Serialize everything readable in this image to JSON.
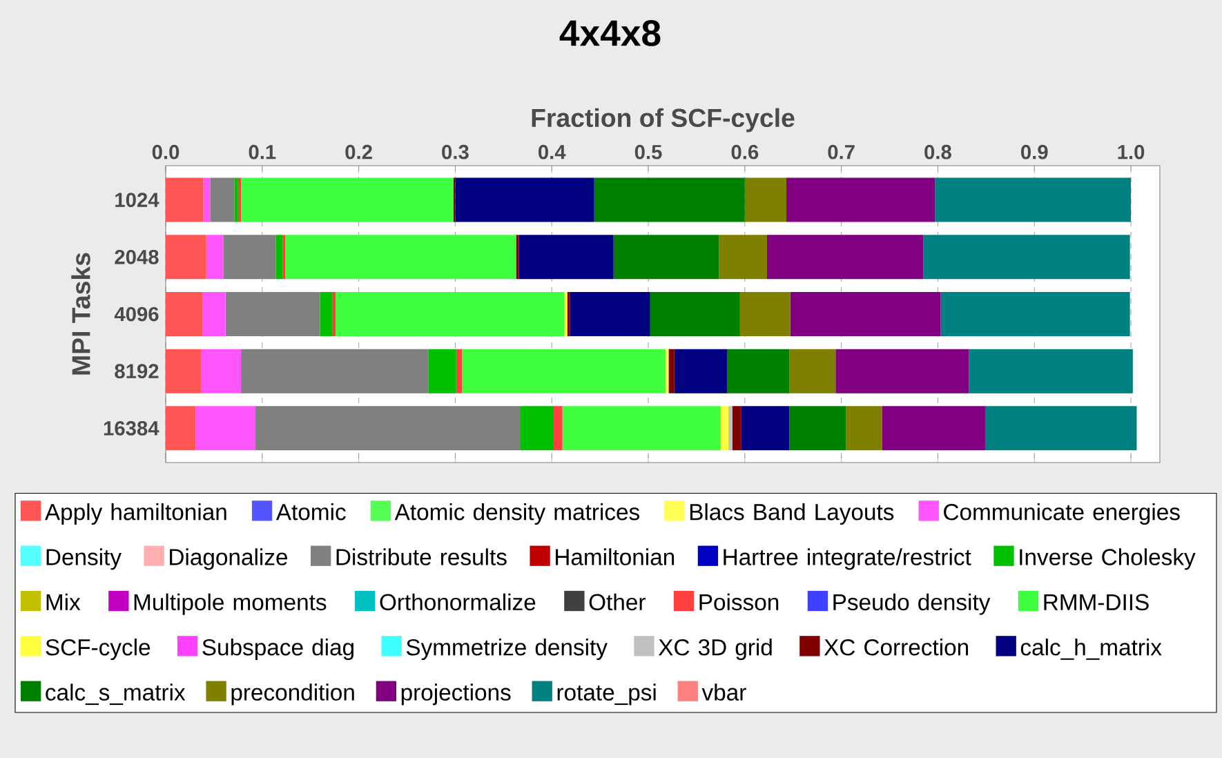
{
  "chart_data": {
    "type": "bar",
    "title": "4x4x8",
    "xlabel": "Fraction of SCF-cycle",
    "ylabel": "MPI Tasks",
    "orientation": "horizontal",
    "stacked": true,
    "grid": "x",
    "legend": "bottom",
    "categories": [
      "1024",
      "2048",
      "4096",
      "8192",
      "16384"
    ],
    "xlim": [
      0,
      1.03
    ],
    "xticks": [
      {
        "value": 0,
        "label": "0.0"
      },
      {
        "value": 0.1,
        "label": "0.1"
      },
      {
        "value": 0.2,
        "label": "0.2"
      },
      {
        "value": 0.3,
        "label": "0.3"
      },
      {
        "value": 0.4,
        "label": "0.4"
      },
      {
        "value": 0.5,
        "label": "0.5"
      },
      {
        "value": 0.6,
        "label": "0.6"
      },
      {
        "value": 0.7,
        "label": "0.7"
      },
      {
        "value": 0.8,
        "label": "0.8"
      },
      {
        "value": 0.9,
        "label": "0.9"
      },
      {
        "value": 1,
        "label": "1.0"
      }
    ],
    "series": [
      {
        "name": "Apply hamiltonian",
        "color": "#ff5555",
        "values": [
          0.039,
          0.042,
          0.038,
          0.037,
          0.031
        ]
      },
      {
        "name": "Atomic",
        "color": "#5555ff",
        "values": [
          0,
          0,
          0,
          0,
          0
        ]
      },
      {
        "name": "Atomic density matrices",
        "color": "#55ff55",
        "values": [
          0,
          0,
          0,
          0,
          0
        ]
      },
      {
        "name": "Blacs Band Layouts",
        "color": "#ffff55",
        "values": [
          0,
          0,
          0,
          0,
          0
        ]
      },
      {
        "name": "Communicate energies",
        "color": "#ff55ff",
        "values": [
          0.007,
          0.018,
          0.024,
          0.041,
          0.062
        ]
      },
      {
        "name": "Density",
        "color": "#55ffff",
        "values": [
          0,
          0,
          0,
          0,
          0
        ]
      },
      {
        "name": "Diagonalize",
        "color": "#ffafaf",
        "values": [
          0,
          0,
          0,
          0,
          0
        ]
      },
      {
        "name": "Distribute results",
        "color": "#808080",
        "values": [
          0.025,
          0.054,
          0.098,
          0.194,
          0.274
        ]
      },
      {
        "name": "Hamiltonian",
        "color": "#c00000",
        "values": [
          0,
          0,
          0,
          0,
          0
        ]
      },
      {
        "name": "Hartree integrate/restrict",
        "color": "#0000c0",
        "values": [
          0,
          0,
          0,
          0,
          0
        ]
      },
      {
        "name": "Inverse Cholesky",
        "color": "#00c000",
        "values": [
          0.004,
          0.007,
          0.013,
          0.029,
          0.035
        ]
      },
      {
        "name": "Mix",
        "color": "#c0c000",
        "values": [
          0,
          0,
          0,
          0,
          0
        ]
      },
      {
        "name": "Multipole moments",
        "color": "#c000c0",
        "values": [
          0,
          0,
          0,
          0,
          0
        ]
      },
      {
        "name": "Orthonormalize",
        "color": "#00c0c0",
        "values": [
          0,
          0,
          0,
          0,
          0
        ]
      },
      {
        "name": "Other",
        "color": "#404040",
        "values": [
          0,
          0,
          0,
          0,
          0
        ]
      },
      {
        "name": "Poisson",
        "color": "#ff4040",
        "values": [
          0.003,
          0.003,
          0.003,
          0.006,
          0.009
        ]
      },
      {
        "name": "Pseudo density",
        "color": "#4040ff",
        "values": [
          0,
          0,
          0,
          0,
          0
        ]
      },
      {
        "name": "RMM-DIIS",
        "color": "#40ff40",
        "values": [
          0.22,
          0.239,
          0.237,
          0.211,
          0.164
        ]
      },
      {
        "name": "SCF-cycle",
        "color": "#ffff40",
        "values": [
          0,
          0,
          0.003,
          0.003,
          0.008
        ]
      },
      {
        "name": "Subspace diag",
        "color": "#ff40ff",
        "values": [
          0,
          0,
          0,
          0,
          0
        ]
      },
      {
        "name": "Symmetrize density",
        "color": "#40ffff",
        "values": [
          0,
          0,
          0,
          0,
          0
        ]
      },
      {
        "name": "XC 3D grid",
        "color": "#c0c0c0",
        "values": [
          null,
          null,
          0,
          null,
          0.004
        ]
      },
      {
        "name": "XC Correction",
        "color": "#800000",
        "values": [
          0.002,
          0.003,
          0.003,
          0.006,
          0.009
        ]
      },
      {
        "name": "calc_h_matrix",
        "color": "#000080",
        "values": [
          0.144,
          0.098,
          0.083,
          0.055,
          0.05
        ]
      },
      {
        "name": "calc_s_matrix",
        "color": "#008000",
        "values": [
          0.156,
          0.109,
          0.093,
          0.064,
          0.059
        ]
      },
      {
        "name": "precondition",
        "color": "#808000",
        "values": [
          0.043,
          0.05,
          0.052,
          0.048,
          0.037
        ]
      },
      {
        "name": "projections",
        "color": "#800080",
        "values": [
          0.154,
          0.162,
          0.156,
          0.138,
          0.107
        ]
      },
      {
        "name": "rotate_psi",
        "color": "#008080",
        "values": [
          0.203,
          0.214,
          0.196,
          0.17,
          0.157
        ]
      },
      {
        "name": "vbar",
        "color": "#ff8080",
        "values": [
          0,
          0,
          0,
          0,
          0
        ]
      }
    ]
  }
}
